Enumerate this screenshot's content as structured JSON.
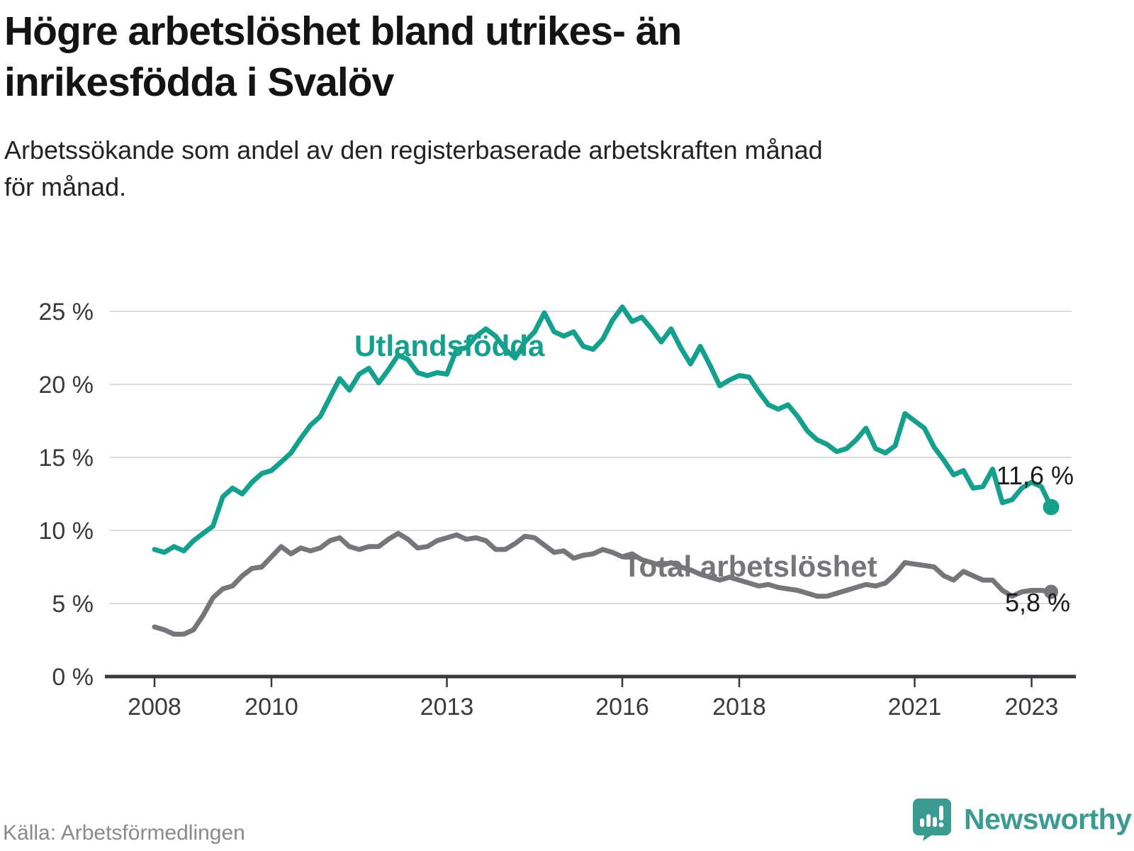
{
  "header": {
    "title": "Högre arbetslöshet bland utrikes- än inrikesfödda i Svalöv",
    "subtitle": "Arbetssökande som andel av den registerbaserade arbetskraften månad för månad."
  },
  "footer": {
    "source": "Källa: Arbetsförmedlingen",
    "brand": "Newsworthy"
  },
  "colors": {
    "teal_line": "#14A08D",
    "gray_line": "#75757A",
    "grid": "#DBDBDB",
    "axis": "#38383C",
    "tick_text": "#3A3A3E",
    "annotation_text": "#1A1A1C",
    "logo_teal": "#3B9A92",
    "source_text": "#8A8A8C"
  },
  "chart_data": {
    "type": "line",
    "title": "Högre arbetslöshet bland utrikes- än inrikesfödda i Svalöv",
    "xlabel": "",
    "ylabel": "",
    "x_unit": "year (monthly series)",
    "x_start_year": 2008,
    "x_step_years": 0.16667,
    "x_end_year": 2023.33,
    "ylim": [
      0,
      26.5
    ],
    "grid": "horizontal",
    "legend_position": "inline-labels",
    "y_axis_ticks": [
      {
        "label": "0 %",
        "value": 0
      },
      {
        "label": "5 %",
        "value": 5
      },
      {
        "label": "10 %",
        "value": 10
      },
      {
        "label": "15 %",
        "value": 15
      },
      {
        "label": "20 %",
        "value": 20
      },
      {
        "label": "25 %",
        "value": 25
      }
    ],
    "x_axis_ticks": [
      {
        "label": "2008",
        "year": 2008
      },
      {
        "label": "2010",
        "year": 2010
      },
      {
        "label": "2013",
        "year": 2013
      },
      {
        "label": "2016",
        "year": 2016
      },
      {
        "label": "2018",
        "year": 2018
      },
      {
        "label": "2021",
        "year": 2021
      },
      {
        "label": "2023",
        "year": 2023
      }
    ],
    "series": [
      {
        "name": "Utlandsfödda",
        "color": "#14A08D",
        "end_label": "11,6 %",
        "end_value": 11.6,
        "values": [
          8.7,
          8.5,
          8.9,
          8.6,
          9.3,
          9.8,
          10.3,
          12.3,
          12.9,
          12.5,
          13.3,
          13.9,
          14.1,
          14.7,
          15.3,
          16.3,
          17.2,
          17.8,
          19.1,
          20.4,
          19.6,
          20.7,
          21.1,
          20.1,
          21.0,
          22.0,
          21.7,
          20.8,
          20.6,
          20.8,
          20.7,
          22.4,
          22.5,
          23.3,
          23.8,
          23.3,
          22.4,
          21.8,
          22.9,
          23.6,
          24.9,
          23.6,
          23.3,
          23.6,
          22.6,
          22.4,
          23.1,
          24.4,
          25.3,
          24.3,
          24.6,
          23.8,
          22.9,
          23.8,
          22.5,
          21.4,
          22.6,
          21.3,
          19.9,
          20.3,
          20.6,
          20.5,
          19.5,
          18.6,
          18.3,
          18.6,
          17.8,
          16.8,
          16.2,
          15.9,
          15.4,
          15.6,
          16.2,
          17.0,
          15.6,
          15.3,
          15.8,
          18.0,
          17.5,
          17.0,
          15.7,
          14.8,
          13.8,
          14.1,
          12.9,
          13.0,
          14.2,
          11.9,
          12.1,
          12.9,
          13.3,
          13.0,
          11.6
        ]
      },
      {
        "name": "Total arbetslöshet",
        "color": "#75757A",
        "end_label": "5,8 %",
        "end_value": 5.8,
        "values": [
          3.4,
          3.2,
          2.9,
          2.9,
          3.2,
          4.2,
          5.4,
          6.0,
          6.2,
          6.9,
          7.4,
          7.5,
          8.2,
          8.9,
          8.4,
          8.8,
          8.6,
          8.8,
          9.3,
          9.5,
          8.9,
          8.7,
          8.9,
          8.9,
          9.4,
          9.8,
          9.4,
          8.8,
          8.9,
          9.3,
          9.5,
          9.7,
          9.4,
          9.5,
          9.3,
          8.7,
          8.7,
          9.1,
          9.6,
          9.5,
          9.0,
          8.5,
          8.6,
          8.1,
          8.3,
          8.4,
          8.7,
          8.5,
          8.2,
          8.4,
          8.0,
          7.8,
          7.6,
          7.8,
          7.5,
          7.3,
          7.0,
          6.8,
          6.6,
          6.8,
          6.6,
          6.4,
          6.2,
          6.3,
          6.1,
          6.0,
          5.9,
          5.7,
          5.5,
          5.5,
          5.7,
          5.9,
          6.1,
          6.3,
          6.2,
          6.4,
          7.0,
          7.8,
          7.7,
          7.6,
          7.5,
          6.9,
          6.6,
          7.2,
          6.9,
          6.6,
          6.6,
          5.9,
          5.5,
          5.8,
          5.9,
          5.9,
          5.8
        ]
      }
    ]
  }
}
